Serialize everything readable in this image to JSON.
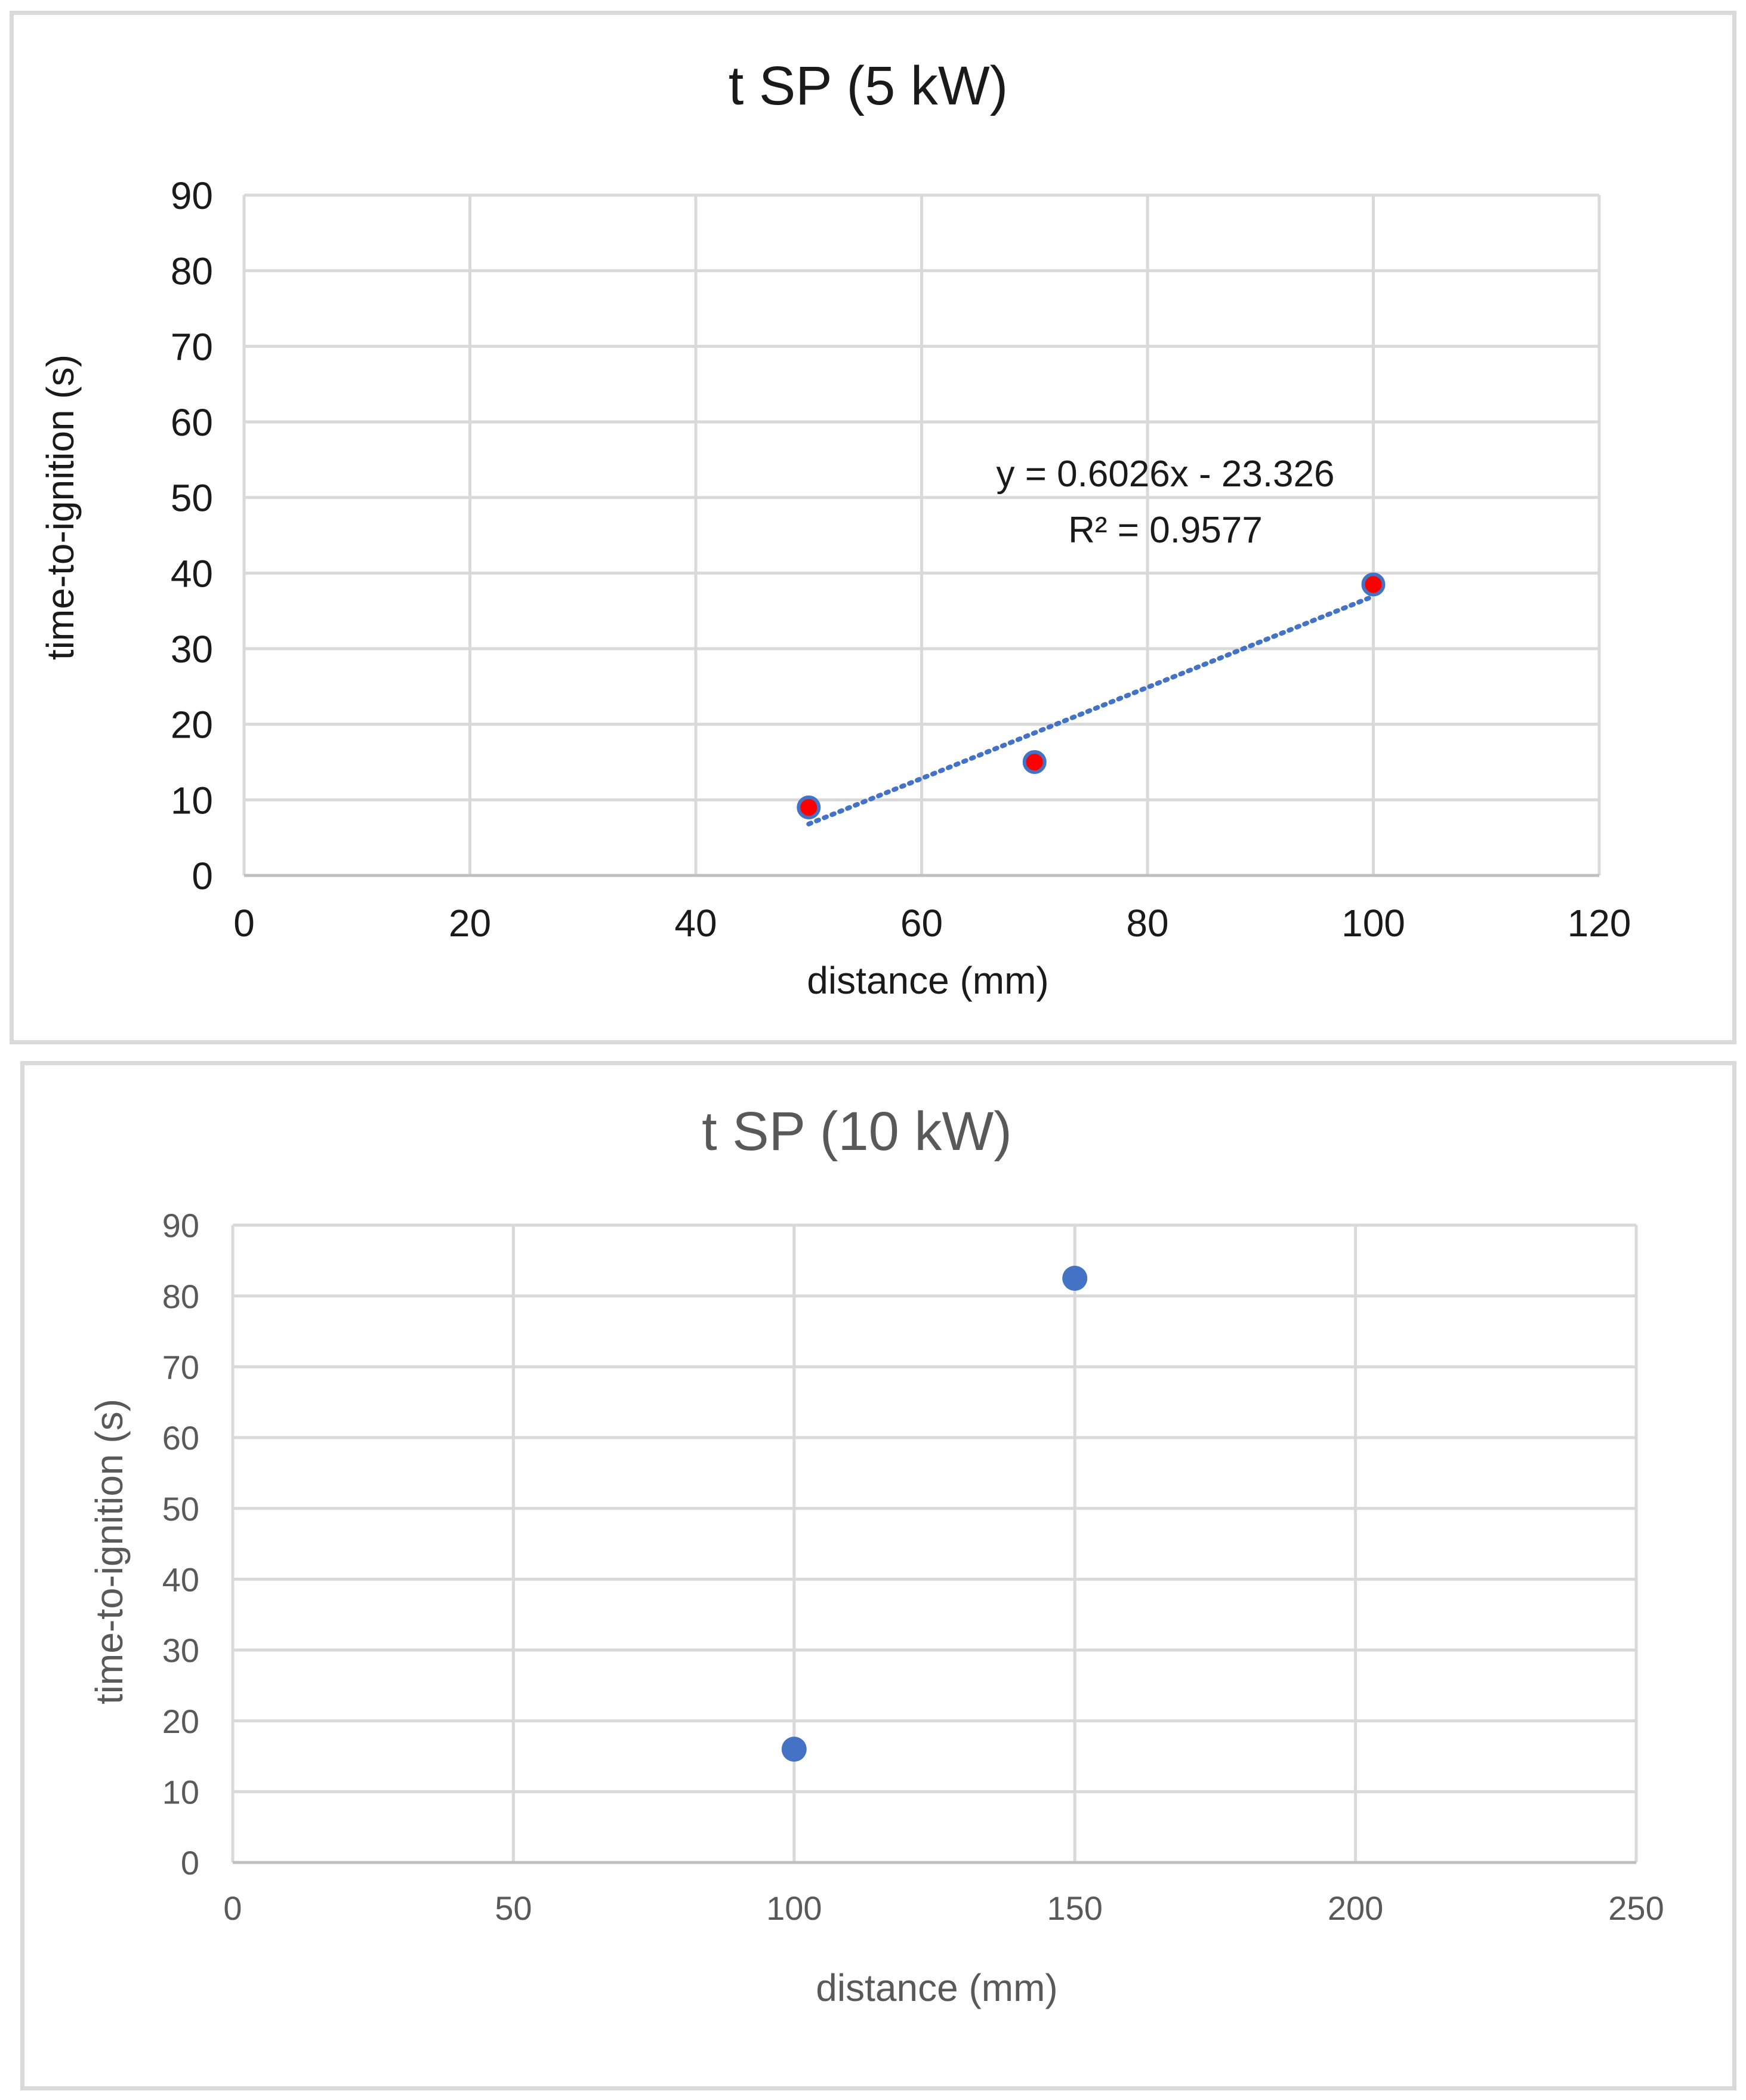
{
  "chart_data": [
    {
      "type": "scatter",
      "title": "t SP (5 kW)",
      "xlabel": "distance (mm)",
      "ylabel": "time-to-ignition (s)",
      "xlim": [
        0,
        120
      ],
      "ylim": [
        0,
        90
      ],
      "xticks": [
        "0",
        "20",
        "40",
        "60",
        "80",
        "100",
        "120"
      ],
      "yticks": [
        "0",
        "10",
        "20",
        "30",
        "40",
        "50",
        "60",
        "70",
        "80",
        "90"
      ],
      "grid": true,
      "series": [
        {
          "name": "t SP (5 kW)",
          "x": [
            50,
            70,
            100
          ],
          "y": [
            9,
            15,
            38.5
          ],
          "color": "#ff0000",
          "edge_color": "#4472c4"
        }
      ],
      "trendline": {
        "type": "linear",
        "slope": 0.6026,
        "intercept": -23.326,
        "x_range": [
          50,
          100
        ],
        "color": "#4472c4",
        "equation_text": "y = 0.6026x - 23.326",
        "r2_text": "R² = 0.9577"
      }
    },
    {
      "type": "scatter",
      "title": "t SP (10  kW)",
      "xlabel": "distance (mm)",
      "ylabel": "time-to-ignition (s)",
      "xlim": [
        0,
        250
      ],
      "ylim": [
        0,
        90
      ],
      "xticks": [
        "0",
        "50",
        "100",
        "150",
        "200",
        "250"
      ],
      "yticks": [
        "0",
        "10",
        "20",
        "30",
        "40",
        "50",
        "60",
        "70",
        "80",
        "90"
      ],
      "grid": true,
      "series": [
        {
          "name": "t SP (10 kW)",
          "x": [
            100,
            150
          ],
          "y": [
            16,
            82.5
          ],
          "color": "#4472c4"
        }
      ]
    }
  ]
}
